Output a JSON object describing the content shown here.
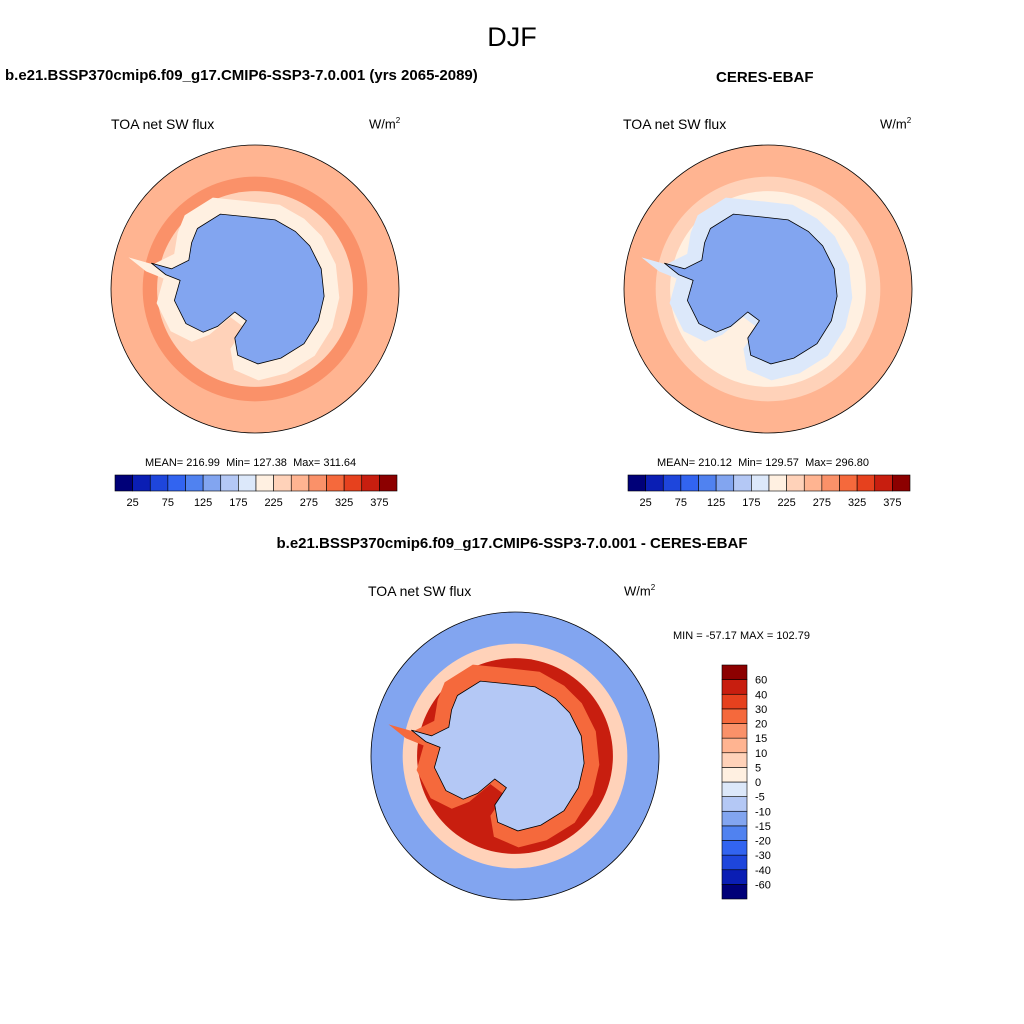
{
  "page": {
    "title": "DJF"
  },
  "panels": [
    {
      "heading": "b.e21.BSSP370cmip6.f09_g17.CMIP6-SSP3-7.0.001 (yrs 2065-2089)",
      "field": "TOA net SW flux",
      "units_base": "W/m",
      "units_exp": "2",
      "mean_label": "MEAN=",
      "mean": "216.99",
      "min_label": "Min=",
      "min": "127.38",
      "max_label": "Max=",
      "max": "311.64"
    },
    {
      "heading": "CERES-EBAF",
      "field": "TOA net SW flux",
      "units_base": "W/m",
      "units_exp": "2",
      "mean_label": "MEAN=",
      "mean": "210.12",
      "min_label": "Min=",
      "min": "129.57",
      "max_label": "Max=",
      "max": "296.80"
    },
    {
      "heading": "b.e21.BSSP370cmip6.f09_g17.CMIP6-SSP3-7.0.001 - CERES-EBAF",
      "field": "TOA net SW flux",
      "units_base": "W/m",
      "units_exp": "2",
      "minmax_text": "MIN = -57.17  MAX = 102.79"
    }
  ],
  "chart_data": [
    {
      "type": "heatmap",
      "title": "b.e21.BSSP370cmip6.f09_g17.CMIP6-SSP3-7.0.001 (yrs 2065-2089)",
      "variable": "TOA net SW flux",
      "units": "W/m2",
      "projection": "south polar stereographic",
      "stats": {
        "mean": 216.99,
        "min": 127.38,
        "max": 311.64
      },
      "colorbar": {
        "orientation": "horizontal",
        "levels": [
          25,
          50,
          75,
          100,
          125,
          150,
          175,
          200,
          225,
          250,
          275,
          300,
          325,
          350,
          375
        ],
        "tick_labels": [
          "25",
          "75",
          "125",
          "175",
          "225",
          "275",
          "325",
          "375"
        ],
        "colors": [
          "#000078",
          "#0a1eb4",
          "#1e46dc",
          "#3264f0",
          "#5082f0",
          "#82a5f0",
          "#b4c8f5",
          "#dce8fa",
          "#fff0e1",
          "#ffd2b9",
          "#ffb491",
          "#fa9169",
          "#f5693c",
          "#e6411e",
          "#c81e0f",
          "#8c0000"
        ]
      },
      "regions": [
        {
          "name": "Antarctic continent",
          "value_range": [
            125,
            150
          ]
        },
        {
          "name": "Antarctic coastal margin",
          "value_range": [
            200,
            250
          ]
        },
        {
          "name": "Southern Ocean",
          "value_range": [
            250,
            300
          ]
        }
      ]
    },
    {
      "type": "heatmap",
      "title": "CERES-EBAF",
      "variable": "TOA net SW flux",
      "units": "W/m2",
      "projection": "south polar stereographic",
      "stats": {
        "mean": 210.12,
        "min": 129.57,
        "max": 296.8
      },
      "colorbar": {
        "orientation": "horizontal",
        "levels": [
          25,
          50,
          75,
          100,
          125,
          150,
          175,
          200,
          225,
          250,
          275,
          300,
          325,
          350,
          375
        ],
        "tick_labels": [
          "25",
          "75",
          "125",
          "175",
          "225",
          "275",
          "325",
          "375"
        ],
        "colors": [
          "#000078",
          "#0a1eb4",
          "#1e46dc",
          "#3264f0",
          "#5082f0",
          "#82a5f0",
          "#b4c8f5",
          "#dce8fa",
          "#fff0e1",
          "#ffd2b9",
          "#ffb491",
          "#fa9169",
          "#f5693c",
          "#e6411e",
          "#c81e0f",
          "#8c0000"
        ]
      },
      "regions": [
        {
          "name": "Antarctic continent",
          "value_range": [
            125,
            150
          ]
        },
        {
          "name": "Antarctic coastal margin",
          "value_range": [
            175,
            225
          ]
        },
        {
          "name": "Southern Ocean",
          "value_range": [
            250,
            300
          ]
        }
      ]
    },
    {
      "type": "heatmap",
      "title": "b.e21.BSSP370cmip6.f09_g17.CMIP6-SSP3-7.0.001 - CERES-EBAF",
      "variable": "TOA net SW flux",
      "units": "W/m2",
      "projection": "south polar stereographic",
      "stats": {
        "min": -57.17,
        "max": 102.79
      },
      "colorbar": {
        "orientation": "vertical",
        "levels": [
          -60,
          -40,
          -30,
          -20,
          -15,
          -10,
          -5,
          0,
          5,
          10,
          15,
          20,
          30,
          40,
          60
        ],
        "tick_labels": [
          "-60",
          "-40",
          "-30",
          "-20",
          "-15",
          "-10",
          "-5",
          "0",
          "5",
          "10",
          "15",
          "20",
          "30",
          "40",
          "60"
        ],
        "colors": [
          "#000078",
          "#0a1eb4",
          "#1e46dc",
          "#3264f0",
          "#5082f0",
          "#82a5f0",
          "#b4c8f5",
          "#dce8fa",
          "#fff0e1",
          "#ffd2b9",
          "#ffb491",
          "#fa9169",
          "#f5693c",
          "#e6411e",
          "#c81e0f",
          "#8c0000"
        ]
      },
      "regions": [
        {
          "name": "Antarctic sea-ice margin ring",
          "value_range": [
            40,
            60
          ]
        },
        {
          "name": "Antarctic continent",
          "value_range": [
            -10,
            0
          ]
        },
        {
          "name": "Open Southern Ocean",
          "value_range": [
            -20,
            -5
          ]
        }
      ]
    }
  ]
}
